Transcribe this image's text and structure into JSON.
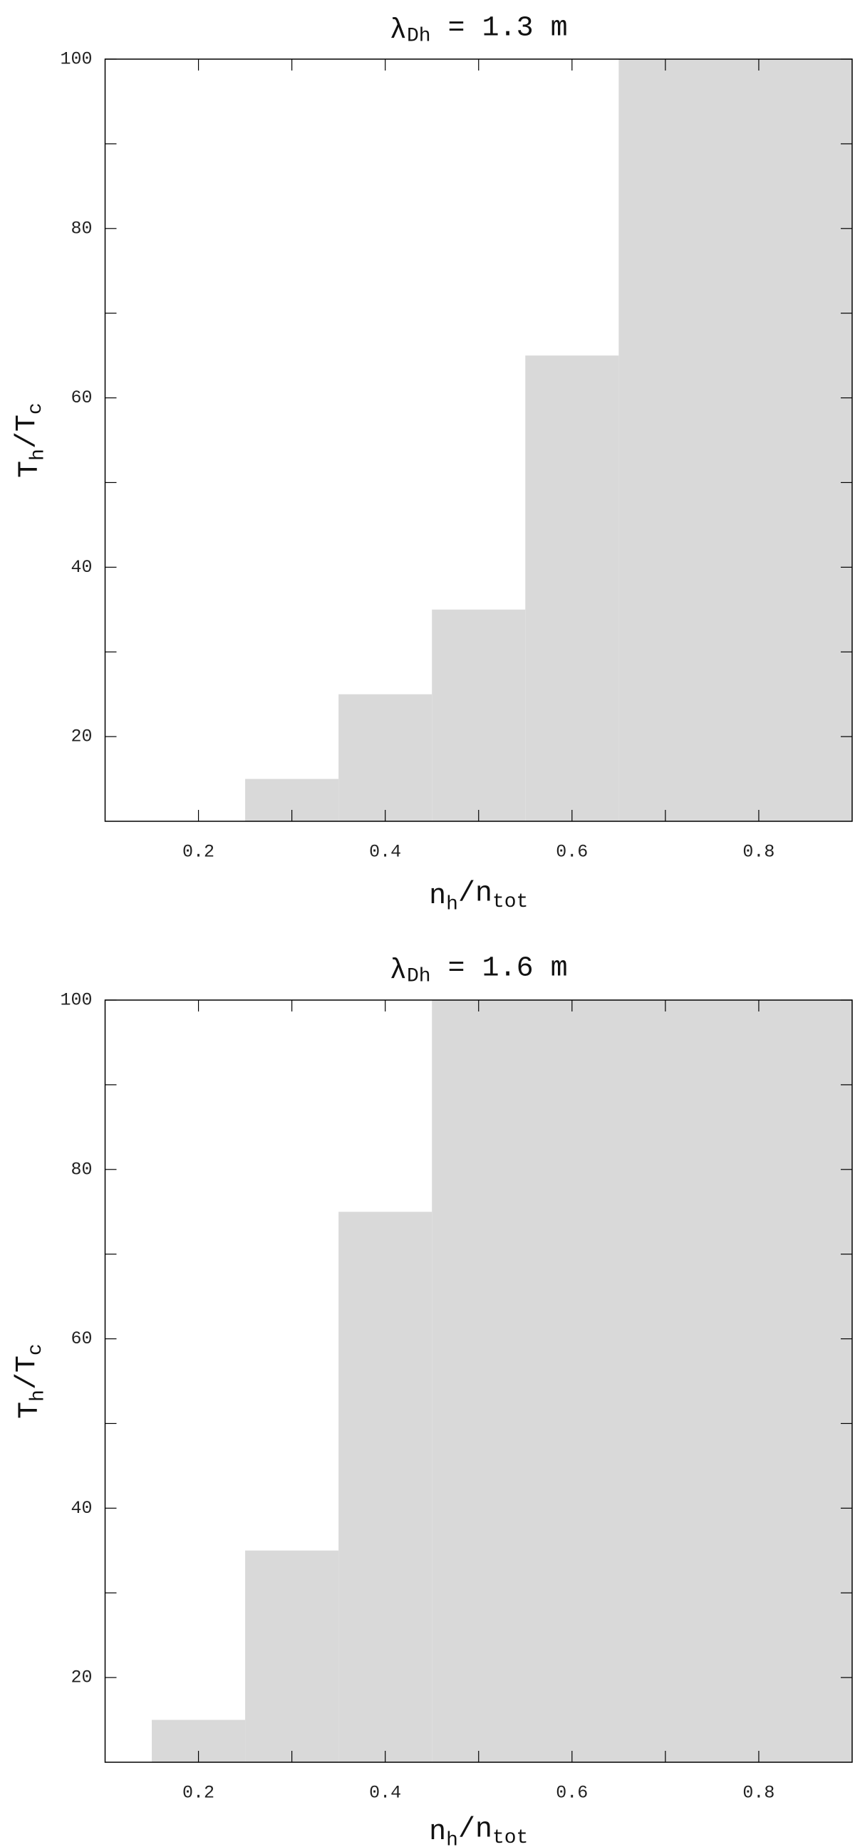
{
  "chart_data": [
    {
      "type": "histogram",
      "title": [
        {
          "text": "λ"
        },
        {
          "text": "Dh",
          "sub": true
        },
        {
          "text": " =  1.3 m"
        }
      ],
      "xlabel": [
        {
          "text": "n"
        },
        {
          "text": "h",
          "sub": true
        },
        {
          "text": "/n"
        },
        {
          "text": "tot",
          "sub": true
        }
      ],
      "ylabel": [
        {
          "text": "T"
        },
        {
          "text": "h",
          "sub": true
        },
        {
          "text": "/T"
        },
        {
          "text": "c",
          "sub": true
        }
      ],
      "bins": [
        0.25,
        0.35,
        0.45,
        0.55,
        0.65,
        0.9
      ],
      "values": [
        15,
        25,
        35,
        65,
        100
      ],
      "color": "#d9d9d9",
      "xlim": [
        0.1,
        0.9
      ],
      "ylim": [
        10,
        100
      ],
      "xticks": [
        0.2,
        0.4,
        0.6,
        0.8
      ],
      "xminor_ticks": [
        0.3,
        0.5,
        0.7
      ],
      "yticks": [
        20,
        40,
        60,
        80,
        100
      ],
      "yminor_ticks": [
        30,
        50,
        70,
        90
      ]
    },
    {
      "type": "histogram",
      "title": [
        {
          "text": "λ"
        },
        {
          "text": "Dh",
          "sub": true
        },
        {
          "text": " =  1.6 m"
        }
      ],
      "xlabel": [
        {
          "text": "n"
        },
        {
          "text": "h",
          "sub": true
        },
        {
          "text": "/n"
        },
        {
          "text": "tot",
          "sub": true
        }
      ],
      "ylabel": [
        {
          "text": "T"
        },
        {
          "text": "h",
          "sub": true
        },
        {
          "text": "/T"
        },
        {
          "text": "c",
          "sub": true
        }
      ],
      "bins": [
        0.15,
        0.25,
        0.35,
        0.45,
        0.9
      ],
      "values": [
        15,
        35,
        75,
        100
      ],
      "color": "#d9d9d9",
      "xlim": [
        0.1,
        0.9
      ],
      "ylim": [
        10,
        100
      ],
      "xticks": [
        0.2,
        0.4,
        0.6,
        0.8
      ],
      "xminor_ticks": [
        0.3,
        0.5,
        0.7
      ],
      "yticks": [
        20,
        40,
        60,
        80,
        100
      ],
      "yminor_ticks": [
        30,
        50,
        70,
        90
      ]
    }
  ]
}
